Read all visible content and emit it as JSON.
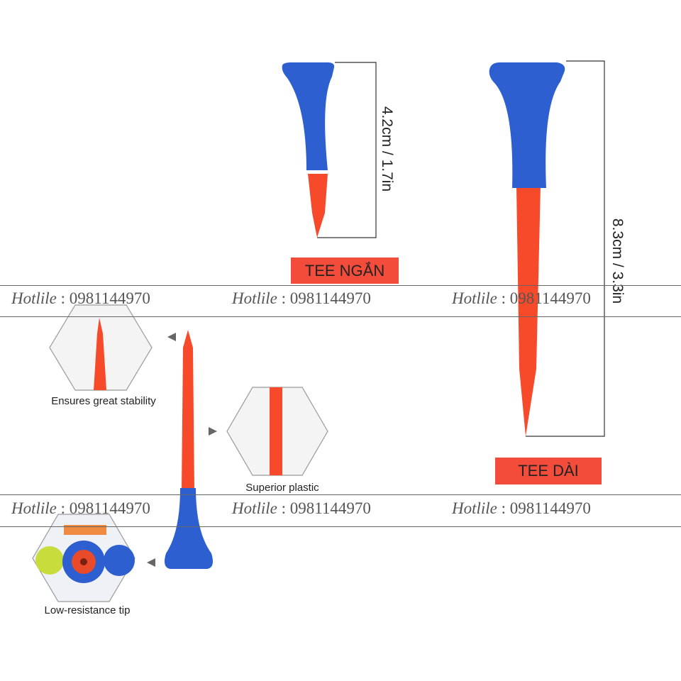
{
  "short_tee": {
    "label": "TEE NGẮN",
    "dimension": "4.2cm / 1.7in"
  },
  "long_tee": {
    "label": "TEE DÀI",
    "dimension": "8.3cm / 3.3in"
  },
  "features": [
    {
      "caption": "Ensures great stability"
    },
    {
      "caption": "Superior plastic"
    },
    {
      "caption": "Low-resistance tip"
    }
  ],
  "watermark": {
    "prefix": "Hotlile",
    "separator": " : ",
    "phone": "0981144970"
  },
  "colors": {
    "cup": "#2d5fd0",
    "spike": "#f64a2a",
    "tag": "#f44c3a"
  }
}
